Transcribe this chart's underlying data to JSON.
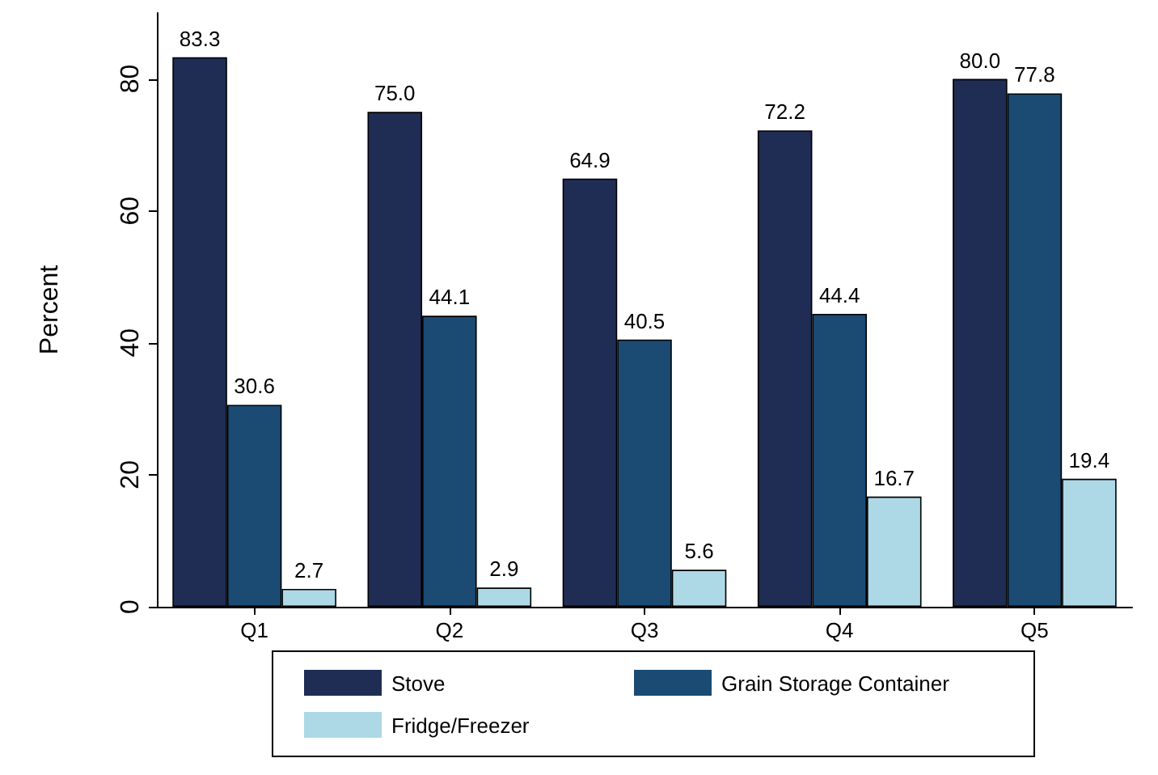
{
  "chart_data": {
    "type": "bar",
    "ylabel": "Percent",
    "categories": [
      "Q1",
      "Q2",
      "Q3",
      "Q4",
      "Q5"
    ],
    "series": [
      {
        "name": "Stove",
        "color": "#1f2d54",
        "values": [
          83.3,
          75.0,
          64.9,
          72.2,
          80.0
        ],
        "value_labels": [
          "83.3",
          "75.0",
          "64.9",
          "72.2",
          "80.0"
        ]
      },
      {
        "name": "Grain Storage Container",
        "color": "#1b4a72",
        "values": [
          30.6,
          44.1,
          40.5,
          44.4,
          77.8
        ],
        "value_labels": [
          "30.6",
          "44.1",
          "40.5",
          "44.4",
          "77.8"
        ]
      },
      {
        "name": "Fridge/Freezer",
        "color": "#add8e6",
        "values": [
          2.7,
          2.9,
          5.6,
          16.7,
          19.4
        ],
        "value_labels": [
          "2.7",
          "2.9",
          "5.6",
          "16.7",
          "19.4"
        ]
      }
    ],
    "ylim": [
      0,
      90
    ],
    "yticks": [
      0,
      20,
      40,
      60,
      80
    ],
    "grid": false,
    "legend": "bottom",
    "data_labels": true
  }
}
